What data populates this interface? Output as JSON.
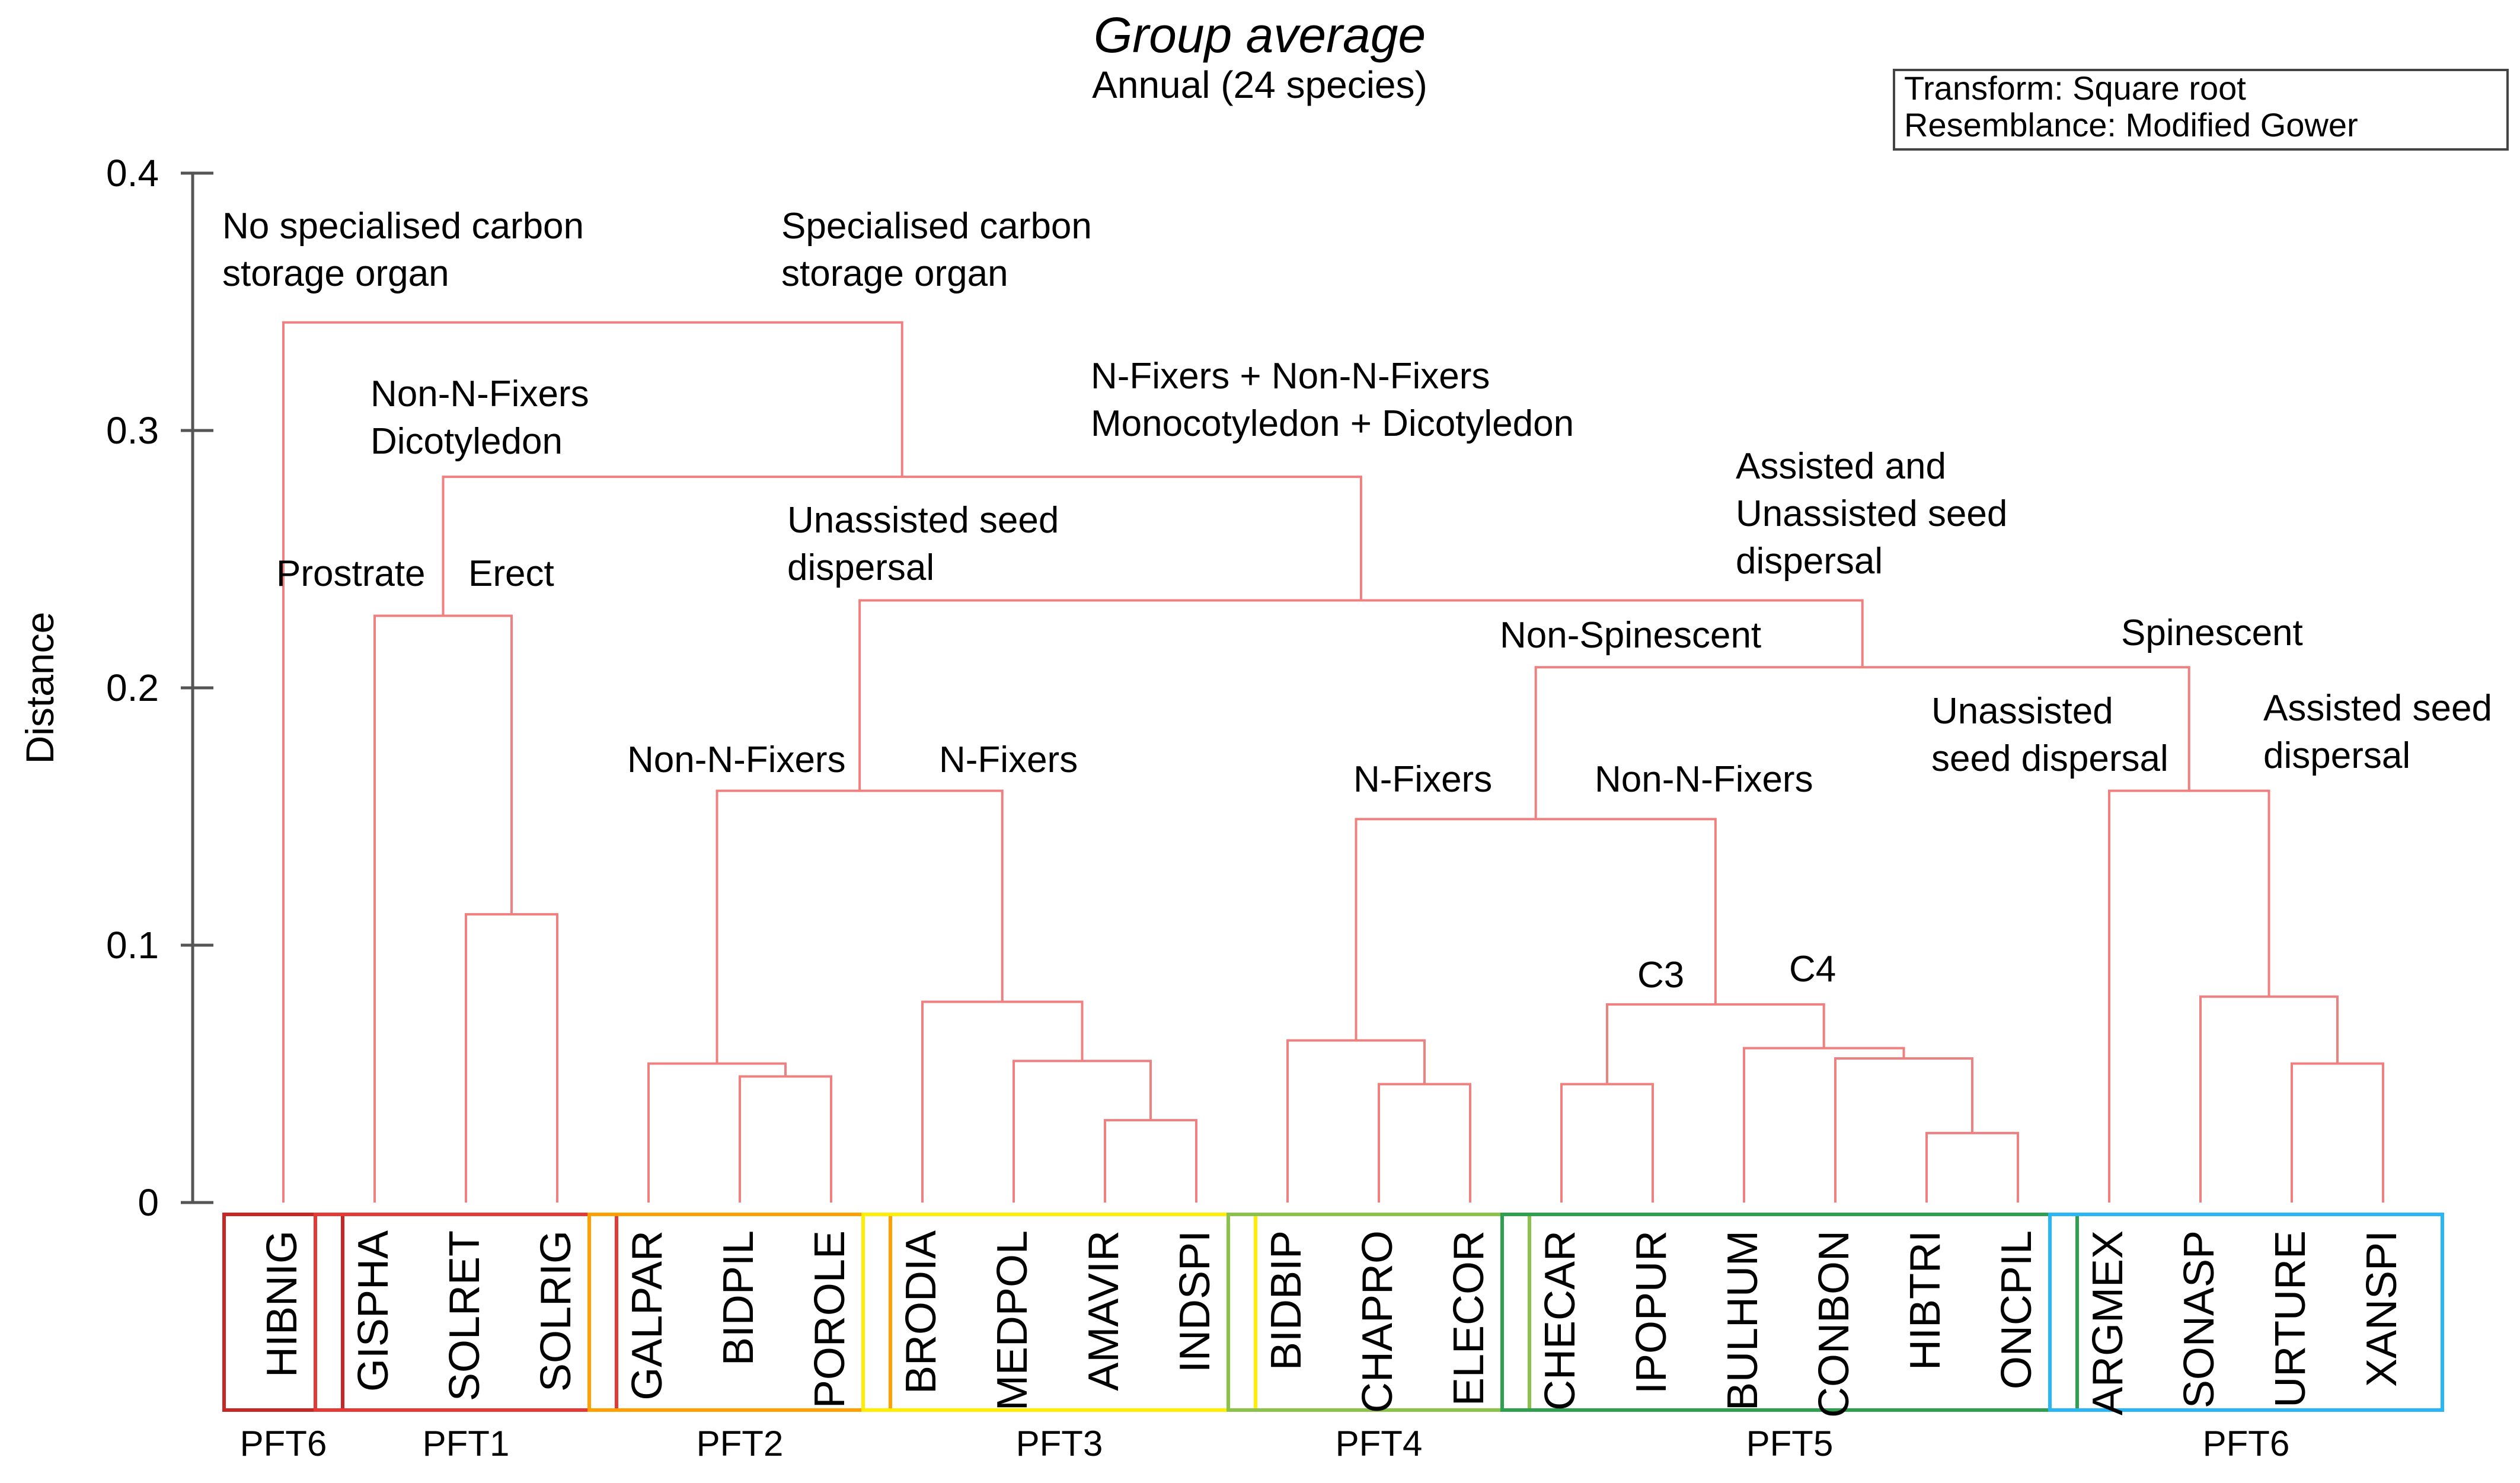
{
  "chart_data": {
    "type": "dendrogram",
    "title": "Group average",
    "subtitle": "Annual (24 species)",
    "legend": [
      "Transform: Square root",
      "Resemblance: Modified Gower"
    ],
    "legend_position": "top-right",
    "ylabel": "Distance",
    "ylim": [
      0,
      0.4
    ],
    "yticks": [
      {
        "value": 0,
        "label": "0"
      },
      {
        "value": 0.1,
        "label": "0.1"
      },
      {
        "value": 0.2,
        "label": "0.2"
      },
      {
        "value": 0.3,
        "label": "0.3"
      },
      {
        "value": 0.4,
        "label": "0.4"
      }
    ],
    "leaves": [
      "HIBNIG",
      "GISPHA",
      "SOLRET",
      "SOLRIG",
      "GALPAR",
      "BIDPIL",
      "POROLE",
      "BRODIA",
      "MEDPOL",
      "AMAVIR",
      "INDSPI",
      "BIDBIP",
      "CHAPRO",
      "ELECOR",
      "CHECAR",
      "IPOPUR",
      "BULHUM",
      "CONBON",
      "HIBTRI",
      "ONCPIL",
      "ARGMEX",
      "SONASP",
      "URTURE",
      "XANSPI"
    ],
    "merges": [
      {
        "id": "m1",
        "left": "L2",
        "right": "L3",
        "height": 0.112
      },
      {
        "id": "m2",
        "left": "L1",
        "right": "m1",
        "height": 0.228
      },
      {
        "id": "m3",
        "left": "L5",
        "right": "L6",
        "height": 0.049
      },
      {
        "id": "m4",
        "left": "L4",
        "right": "m3",
        "height": 0.054
      },
      {
        "id": "m5",
        "left": "L9",
        "right": "L10",
        "height": 0.032
      },
      {
        "id": "m6",
        "left": "L8",
        "right": "m5",
        "height": 0.055
      },
      {
        "id": "m7",
        "left": "L7",
        "right": "m6",
        "height": 0.078
      },
      {
        "id": "m8",
        "left": "m4",
        "right": "m7",
        "height": 0.16
      },
      {
        "id": "m9",
        "left": "L12",
        "right": "L13",
        "height": 0.046
      },
      {
        "id": "m10",
        "left": "L11",
        "right": "m9",
        "height": 0.063
      },
      {
        "id": "m11",
        "left": "L14",
        "right": "L15",
        "height": 0.046
      },
      {
        "id": "m12",
        "left": "L18",
        "right": "L19",
        "height": 0.027
      },
      {
        "id": "m13",
        "left": "L17",
        "right": "m12",
        "height": 0.056
      },
      {
        "id": "m14",
        "left": "L16",
        "right": "m13",
        "height": 0.06
      },
      {
        "id": "m15",
        "left": "m11",
        "right": "m14",
        "height": 0.077
      },
      {
        "id": "m16",
        "left": "m10",
        "right": "m15",
        "height": 0.149
      },
      {
        "id": "m17",
        "left": "L22",
        "right": "L23",
        "height": 0.054
      },
      {
        "id": "m18",
        "left": "L21",
        "right": "m17",
        "height": 0.08
      },
      {
        "id": "m19",
        "left": "L20",
        "right": "m18",
        "height": 0.16
      },
      {
        "id": "m20",
        "left": "m16",
        "right": "m19",
        "height": 0.208
      },
      {
        "id": "m21",
        "left": "m8",
        "right": "m20",
        "height": 0.234
      },
      {
        "id": "m22",
        "left": "m2",
        "right": "m21",
        "height": 0.282
      },
      {
        "id": "m23",
        "left": "L0",
        "right": "m22",
        "height": 0.342
      }
    ],
    "groups": [
      {
        "name": "PFT6",
        "from": 0,
        "to": 0,
        "color": "#c62828"
      },
      {
        "name": "PFT1",
        "from": 1,
        "to": 3,
        "color": "#e53935"
      },
      {
        "name": "PFT2",
        "from": 4,
        "to": 6,
        "color": "#ffa000"
      },
      {
        "name": "PFT3",
        "from": 7,
        "to": 10,
        "color": "#ffee00"
      },
      {
        "name": "PFT4",
        "from": 11,
        "to": 13,
        "color": "#8bc34a"
      },
      {
        "name": "PFT5",
        "from": 14,
        "to": 19,
        "color": "#2e9e4f"
      },
      {
        "name": "PFT6",
        "from": 20,
        "to": 23,
        "color": "#29b6f6"
      }
    ],
    "annotations": [
      {
        "lines": [
          "No specialised carbon",
          "storage organ"
        ]
      },
      {
        "lines": [
          "Specialised carbon",
          "storage organ"
        ]
      },
      {
        "lines": [
          "Non-N-Fixers",
          "Dicotyledon"
        ]
      },
      {
        "lines": [
          "N-Fixers + Non-N-Fixers",
          "Monocotyledon + Dicotyledon"
        ]
      },
      {
        "lines": [
          "Prostrate"
        ]
      },
      {
        "lines": [
          "Erect"
        ]
      },
      {
        "lines": [
          "Unassisted seed",
          "dispersal"
        ]
      },
      {
        "lines": [
          "Assisted and",
          "Unassisted seed",
          "dispersal"
        ]
      },
      {
        "lines": [
          "Non-Spinescent"
        ]
      },
      {
        "lines": [
          "Spinescent"
        ]
      },
      {
        "lines": [
          "Non-N-Fixers"
        ]
      },
      {
        "lines": [
          "N-Fixers"
        ]
      },
      {
        "lines": [
          "N-Fixers"
        ]
      },
      {
        "lines": [
          "Non-N-Fixers"
        ]
      },
      {
        "lines": [
          "Unassisted",
          "seed dispersal"
        ]
      },
      {
        "lines": [
          "Assisted seed",
          "dispersal"
        ]
      },
      {
        "lines": [
          "C3"
        ]
      },
      {
        "lines": [
          "C4"
        ]
      }
    ]
  },
  "colors": {
    "title": "#1f1fe8",
    "branch": "#f08080",
    "axis": "#555555"
  }
}
